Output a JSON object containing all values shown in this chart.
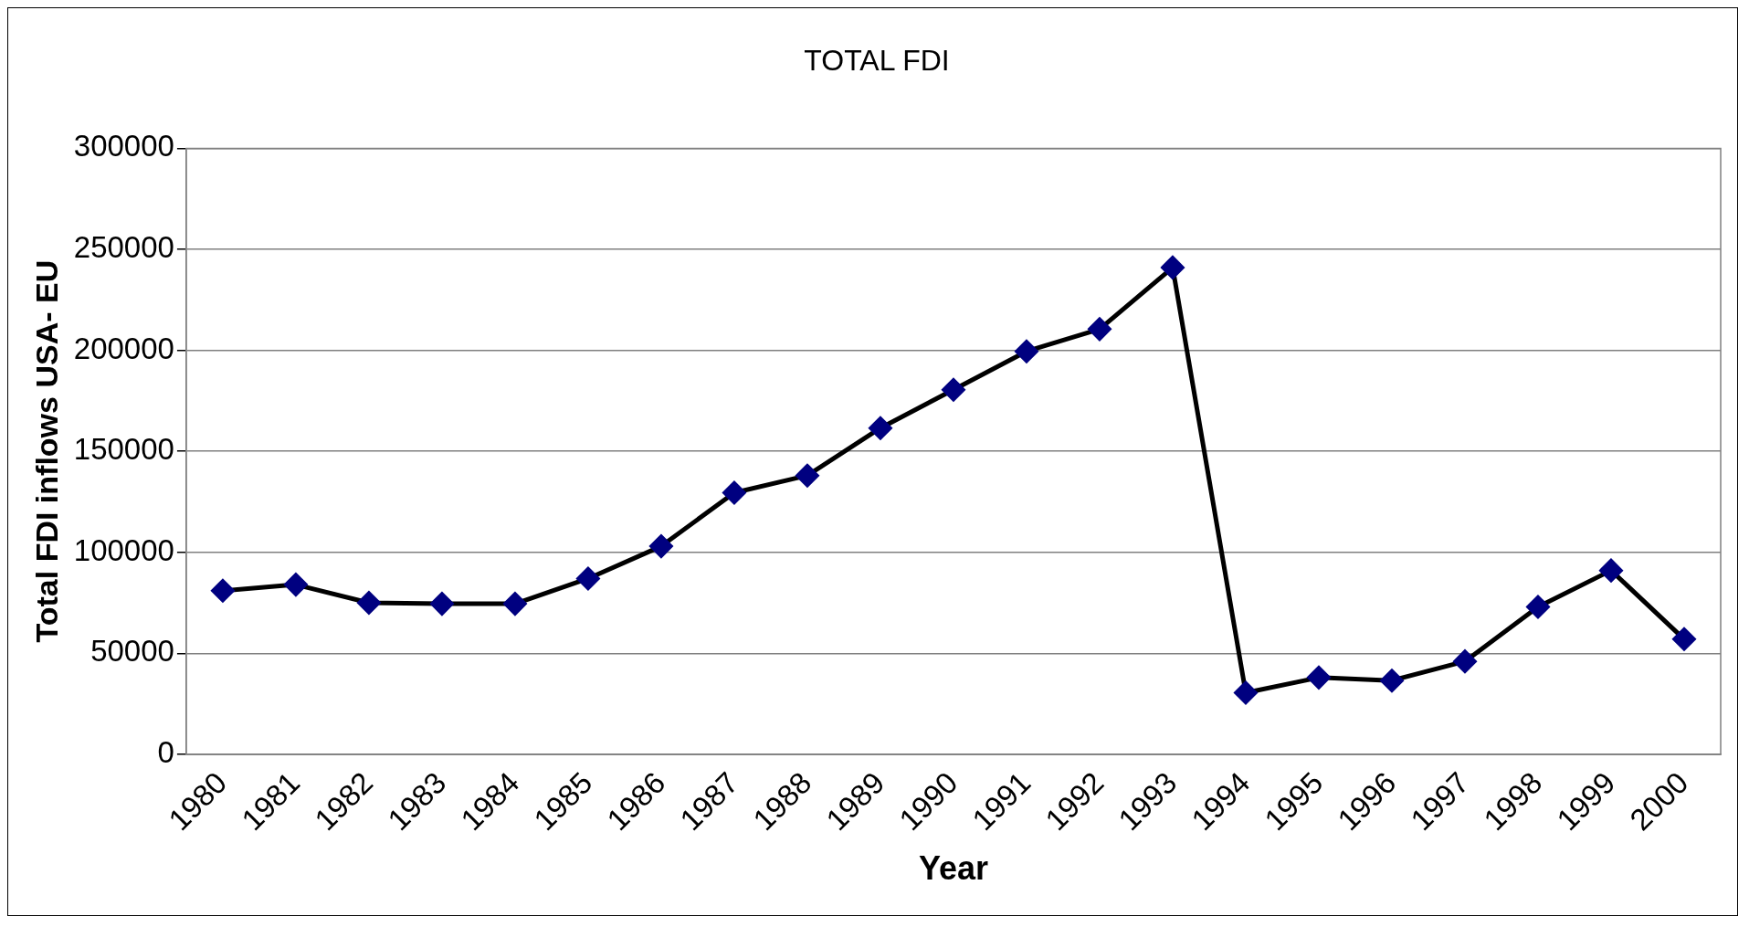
{
  "chart_data": {
    "type": "line",
    "title": "TOTAL FDI",
    "xlabel": "Year",
    "ylabel": "Total FDI inflows USA- EU",
    "categories": [
      "1980",
      "1981",
      "1982",
      "1983",
      "1984",
      "1985",
      "1986",
      "1987",
      "1988",
      "1989",
      "1990",
      "1991",
      "1992",
      "1993",
      "1994",
      "1995",
      "1996",
      "1997",
      "1998",
      "1999",
      "2000"
    ],
    "series": [
      {
        "color": "#000000",
        "values": [
          81000,
          84000,
          75000,
          74500,
          74500,
          87000,
          103000,
          129500,
          138000,
          161500,
          180500,
          199500,
          210500,
          241000,
          30500,
          38000,
          36500,
          46000,
          73000,
          91000,
          57000
        ]
      }
    ],
    "ylim": [
      0,
      300000
    ],
    "yticks": [
      0,
      50000,
      100000,
      150000,
      200000,
      250000,
      300000
    ],
    "grid": "y",
    "legend": false,
    "marker": "diamond",
    "line_style": "solid"
  }
}
